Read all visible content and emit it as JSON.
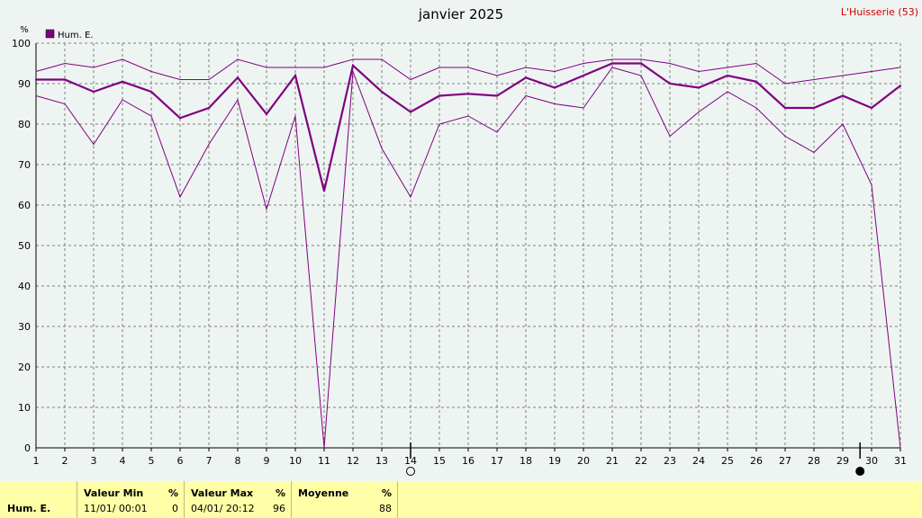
{
  "chart_data": {
    "type": "line",
    "title": "janvier 2025",
    "station": "L'Huisserie (53)",
    "ylabel": "%",
    "ylim": [
      0,
      100
    ],
    "yticks": [
      0,
      10,
      20,
      30,
      40,
      50,
      60,
      70,
      80,
      90,
      100
    ],
    "x": [
      1,
      2,
      3,
      4,
      5,
      6,
      7,
      8,
      9,
      10,
      11,
      12,
      13,
      14,
      15,
      16,
      17,
      18,
      19,
      20,
      21,
      22,
      23,
      24,
      25,
      26,
      27,
      28,
      29,
      30,
      31
    ],
    "grid": true,
    "legend": "top-left",
    "colors": {
      "series": "#800080",
      "title": "#000000",
      "station": "#cc0000",
      "grid": "#888888",
      "background": "#eef4f2",
      "footer": "#ffffa8"
    },
    "legend_label": "Hum. E.",
    "series": [
      {
        "role": "max",
        "values": [
          93,
          95,
          94,
          96,
          93,
          91,
          91,
          96,
          94,
          94,
          94,
          96,
          96,
          91,
          94,
          94,
          92,
          94,
          93,
          95,
          96,
          96,
          95,
          93,
          94,
          95,
          90,
          91,
          92,
          93,
          94
        ]
      },
      {
        "role": "mean",
        "values": [
          91,
          91,
          88,
          90.5,
          88,
          81.5,
          84,
          91.5,
          82.5,
          92,
          63.5,
          94.5,
          88,
          83,
          87,
          87.5,
          87,
          91.5,
          89,
          92,
          95,
          95,
          90,
          89,
          92,
          90.5,
          84,
          84,
          87,
          84,
          89.5
        ]
      },
      {
        "role": "min",
        "values": [
          87,
          85,
          75,
          86,
          82,
          62,
          75,
          86,
          59,
          82,
          0,
          93,
          74,
          62,
          80,
          82,
          78,
          87,
          85,
          84,
          94,
          92,
          77,
          83,
          88,
          84,
          77,
          73,
          80,
          65,
          0
        ]
      }
    ],
    "moon_phases": [
      {
        "day": 14,
        "phase": "full-moon"
      },
      {
        "day": 29.6,
        "phase": "new-moon"
      }
    ]
  },
  "summary": {
    "row_label": "Hum. E.",
    "min_header": "Valeur Min",
    "min_unit": "%",
    "min_time": "11/01/ 00:01",
    "min_value": "0",
    "max_header": "Valeur Max",
    "max_unit": "%",
    "max_time": "04/01/ 20:12",
    "max_value": "96",
    "mean_header": "Moyenne",
    "mean_unit": "%",
    "mean_value": "88"
  }
}
